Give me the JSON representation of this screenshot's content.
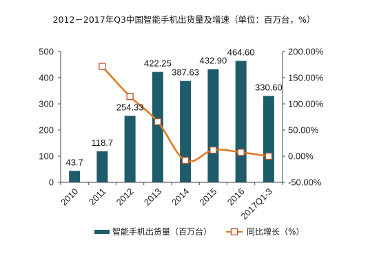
{
  "chart_data": {
    "type": "bar",
    "title": "2012－2017年Q3中国智能手机出货量及增速（单位：百万台，%）",
    "categories": [
      "2010",
      "2011",
      "2012",
      "2013",
      "2014",
      "2015",
      "2016",
      "2017Q1-3"
    ],
    "series": [
      {
        "name": "智能手机出货量（百万台）",
        "type": "bar",
        "axis": "left",
        "values": [
          43.7,
          118.7,
          254.33,
          422.25,
          387.63,
          432.9,
          464.6,
          330.6
        ],
        "labels": [
          "43.7",
          "118.7",
          "254.33",
          "422.25",
          "387.63",
          "432.90",
          "464.60",
          "330.60"
        ],
        "color": "#1f5c6b"
      },
      {
        "name": "同比增长（%）",
        "type": "line",
        "axis": "right",
        "values": [
          null,
          171.6,
          114.3,
          66.0,
          -8.2,
          11.7,
          7.3,
          -0.1
        ],
        "color": "#e07a22"
      }
    ],
    "y_left": {
      "min": 0,
      "max": 500,
      "ticks": [
        "0",
        "100",
        "200",
        "300",
        "400",
        "500"
      ]
    },
    "y_right": {
      "min": -50,
      "max": 200,
      "ticks": [
        "-50.00%",
        "0.00%",
        "50.00%",
        "100.00%",
        "150.00%",
        "200.00%"
      ]
    },
    "grid": false,
    "legend_position": "bottom"
  }
}
